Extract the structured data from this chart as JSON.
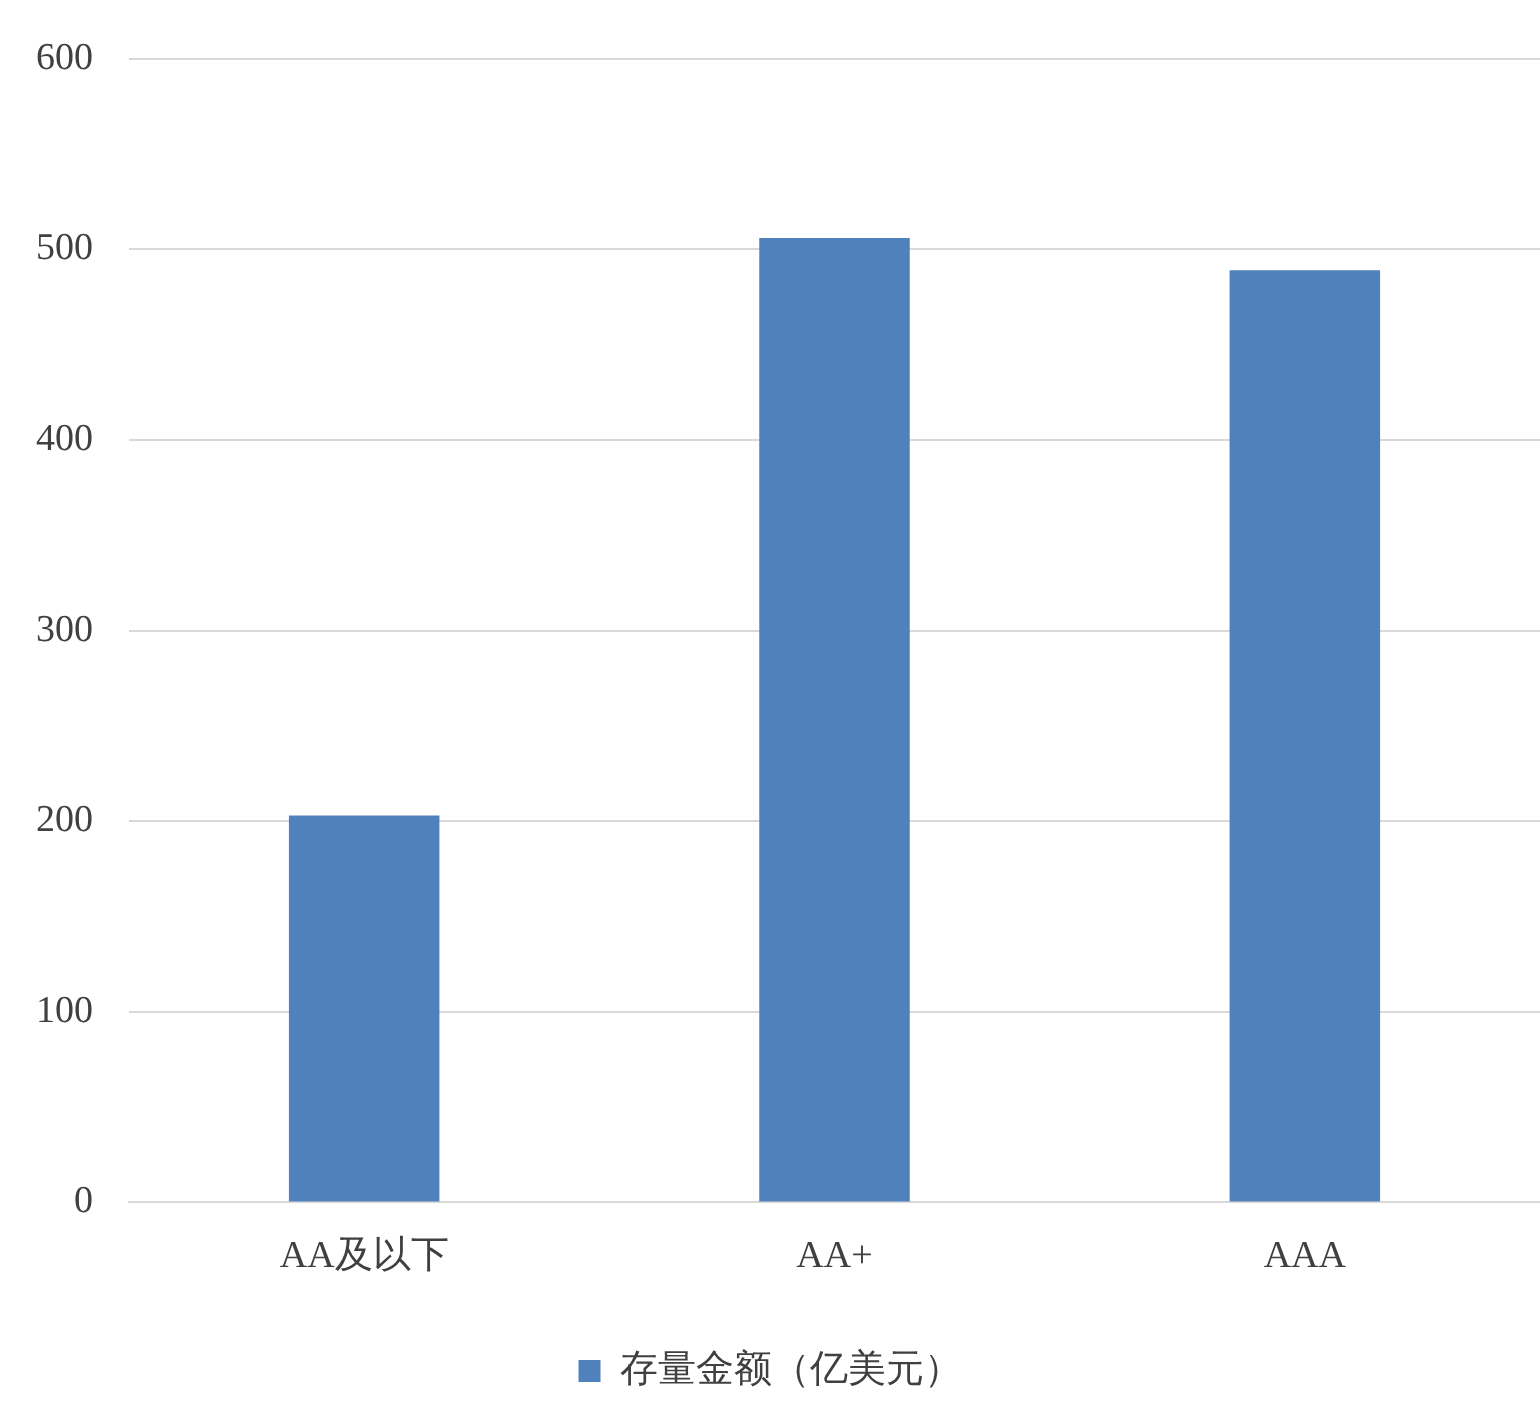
{
  "chart_data": {
    "type": "bar",
    "categories": [
      "AA及以下",
      "AA+",
      "AAA"
    ],
    "series": [
      {
        "name": "存量金额（亿美元）",
        "color": "#4f81bd",
        "values": [
          203,
          506,
          489
        ]
      }
    ],
    "ylim": [
      0,
      600
    ],
    "yticks": [
      0,
      100,
      200,
      300,
      400,
      500,
      600
    ],
    "grid": "y",
    "legend": "bottom"
  }
}
